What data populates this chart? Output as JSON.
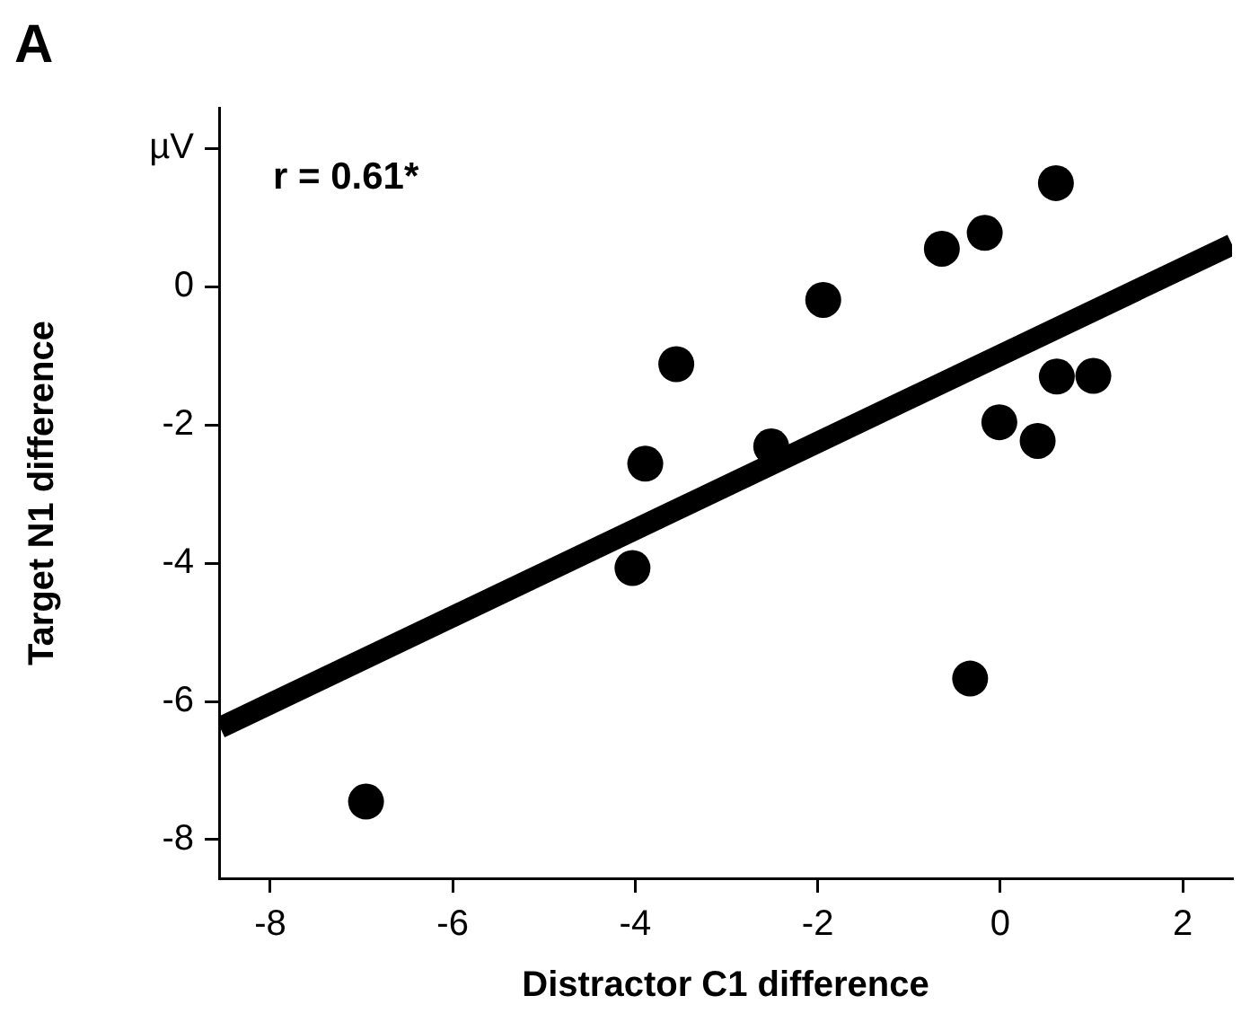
{
  "chart_data": {
    "type": "scatter",
    "title": "A",
    "xlabel": "Distractor C1 difference",
    "ylabel": "Target N1 difference",
    "annotations": [
      "r = 0.61*"
    ],
    "xlim": [
      -8.56,
      2.54
    ],
    "ylim": [
      -8.56,
      2.59
    ],
    "xticks": [
      -8,
      -6,
      -4,
      -2,
      0,
      2
    ],
    "yticks": [
      {
        "value": 2,
        "label": "µV"
      },
      0,
      -2,
      -4,
      -6,
      -8
    ],
    "legend": false,
    "series": [
      {
        "marker": "circle",
        "color": "#000000",
        "x": [
          -6.95,
          -4.03,
          -3.89,
          -3.55,
          -2.51,
          -1.94,
          -0.64,
          -0.17,
          0.61,
          -0.33,
          -0.01,
          0.41,
          0.62,
          1.02
        ],
        "values": [
          -7.45,
          -4.07,
          -2.56,
          -1.12,
          -2.31,
          -0.19,
          0.55,
          0.78,
          1.5,
          -5.67,
          -1.96,
          -2.23,
          -1.3,
          -1.29
        ]
      },
      {
        "type": "line",
        "marker": "none",
        "color": "#000000",
        "x": [
          -8.55,
          2.54
        ],
        "values": [
          -6.38,
          0.61
        ]
      }
    ]
  }
}
